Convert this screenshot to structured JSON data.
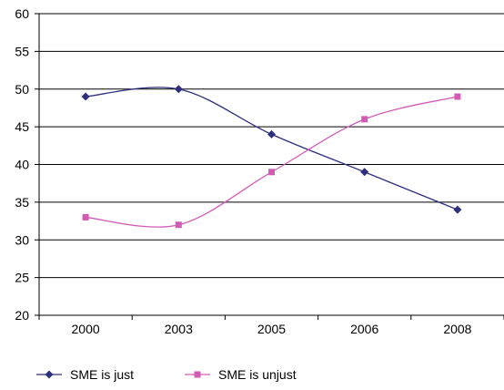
{
  "chart_data": {
    "type": "line",
    "categories": [
      "2000",
      "2003",
      "2005",
      "2006",
      "2008"
    ],
    "series": [
      {
        "name": "SME is just",
        "values": [
          49,
          50,
          44,
          39,
          34
        ],
        "color": "#2e2f7f",
        "marker": "diamond"
      },
      {
        "name": "SME is unjust",
        "values": [
          33,
          32,
          39,
          46,
          49
        ],
        "color": "#d35bb6",
        "marker": "square"
      }
    ],
    "ylim": [
      20,
      60
    ],
    "yticks": [
      "20",
      "25",
      "30",
      "35",
      "40",
      "45",
      "50",
      "55",
      "60"
    ],
    "grid": true,
    "smooth": true,
    "legend_position": "bottom-left",
    "axis_color": "#000000"
  }
}
